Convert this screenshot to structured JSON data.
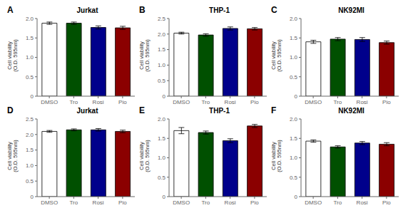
{
  "chart_data": [
    {
      "type": "bar",
      "title": "Jurkat",
      "annotation": "A",
      "ylabel": "Cell viability\n(O.D. 595nm)",
      "categories": [
        "DMSO",
        "Tro",
        "Rosi",
        "Pio"
      ],
      "values": [
        1.88,
        1.88,
        1.77,
        1.76
      ],
      "errors": [
        0.03,
        0.03,
        0.04,
        0.04
      ],
      "colors": [
        "#ffffff",
        "#005000",
        "#00008b",
        "#8b0000"
      ],
      "ylim": [
        0,
        2.0
      ],
      "yticks": [
        0,
        0.5,
        {
          "value": 1,
          "label": "1.0"
        },
        1.5,
        {
          "value": 2,
          "label": "2.0"
        }
      ],
      "grid": false
    },
    {
      "type": "bar",
      "title": "THP-1",
      "annotation": "B",
      "ylabel": "Cell viability\n(O.D. 595nm)",
      "categories": [
        "DMSO",
        "Tro",
        "Rosi",
        "Pio"
      ],
      "values": [
        2.03,
        1.97,
        2.18,
        2.17
      ],
      "errors": [
        0.03,
        0.04,
        0.05,
        0.04
      ],
      "colors": [
        "#ffffff",
        "#005000",
        "#00008b",
        "#8b0000"
      ],
      "ylim": [
        0,
        2.5
      ],
      "yticks": [
        0,
        0.5,
        {
          "value": 1,
          "label": "1.0"
        },
        1.5,
        {
          "value": 2,
          "label": "2.0"
        },
        2.5
      ],
      "grid": false
    },
    {
      "type": "bar",
      "title": "NK92MI",
      "annotation": "C",
      "ylabel": "Cell viability\n(O.D. 595nm)",
      "categories": [
        "DMSO",
        "Tro",
        "Rosi",
        "Pio"
      ],
      "values": [
        1.4,
        1.47,
        1.46,
        1.38
      ],
      "errors": [
        0.04,
        0.04,
        0.05,
        0.04
      ],
      "colors": [
        "#ffffff",
        "#005000",
        "#00008b",
        "#8b0000"
      ],
      "ylim": [
        0,
        2.0
      ],
      "yticks": [
        0,
        0.5,
        {
          "value": 1,
          "label": "1.0"
        },
        1.5,
        {
          "value": 2,
          "label": "2.0"
        }
      ],
      "grid": false
    },
    {
      "type": "bar",
      "title": "Jurkat",
      "annotation": "D",
      "ylabel": "Cell viability\n(O.D. 595nm)",
      "categories": [
        "DMSO",
        "Tro",
        "Rosi",
        "Pio"
      ],
      "values": [
        2.1,
        2.15,
        2.15,
        2.1
      ],
      "errors": [
        0.03,
        0.03,
        0.04,
        0.04
      ],
      "colors": [
        "#ffffff",
        "#005000",
        "#00008b",
        "#8b0000"
      ],
      "ylim": [
        0,
        2.5
      ],
      "yticks": [
        0,
        0.5,
        {
          "value": 1,
          "label": "1.0"
        },
        1.5,
        {
          "value": 2,
          "label": "2.0"
        },
        2.5
      ],
      "grid": false
    },
    {
      "type": "bar",
      "title": "THP-1",
      "annotation": "E",
      "ylabel": "Cell viability\n(O.D. 595nm)",
      "categories": [
        "DMSO",
        "Tro",
        "Rosi",
        "Pio"
      ],
      "values": [
        1.7,
        1.65,
        1.44,
        1.82
      ],
      "errors": [
        0.08,
        0.04,
        0.05,
        0.04
      ],
      "colors": [
        "#ffffff",
        "#005000",
        "#00008b",
        "#8b0000"
      ],
      "ylim": [
        0,
        2.0
      ],
      "yticks": [
        0,
        0.5,
        {
          "value": 1,
          "label": "1.0"
        },
        1.5,
        {
          "value": 2,
          "label": "2.0"
        }
      ],
      "grid": false
    },
    {
      "type": "bar",
      "title": "NK92MI",
      "annotation": "F",
      "ylabel": "Cell viability\n(O.D. 595nm)",
      "categories": [
        "DMSO",
        "Tro",
        "Rosi",
        "Pio"
      ],
      "values": [
        1.43,
        1.28,
        1.38,
        1.35
      ],
      "errors": [
        0.03,
        0.03,
        0.04,
        0.04
      ],
      "colors": [
        "#ffffff",
        "#005000",
        "#00008b",
        "#8b0000"
      ],
      "ylim": [
        0,
        2.0
      ],
      "yticks": [
        0,
        0.5,
        {
          "value": 1,
          "label": "1.0"
        },
        1.5,
        {
          "value": 2,
          "label": "2.0"
        }
      ],
      "grid": false
    }
  ]
}
